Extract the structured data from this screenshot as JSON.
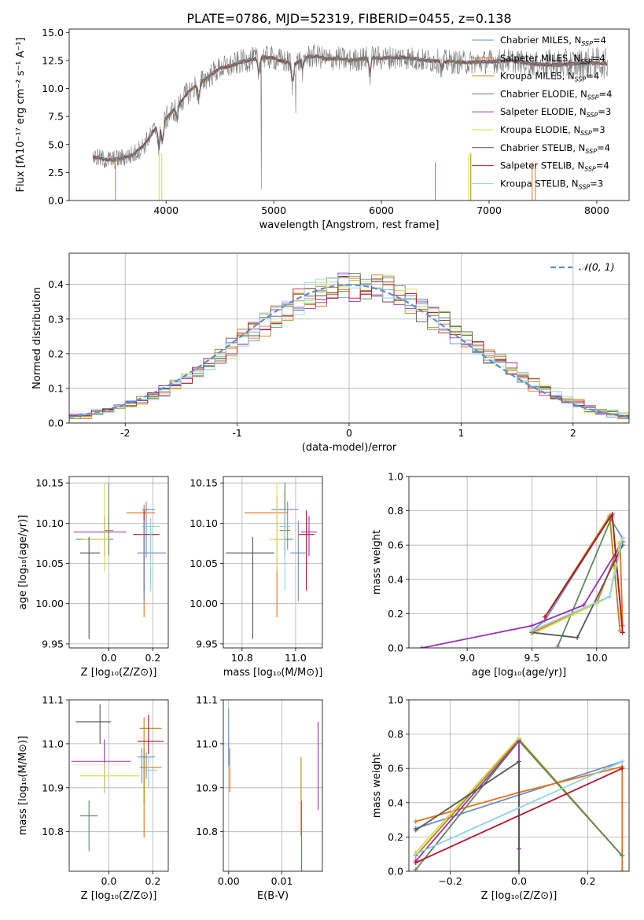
{
  "figure": {
    "title": "PLATE=0786, MJD=52319, FIBERID=0455, z=0.138"
  },
  "legend_colors": [
    "#6c8ebf",
    "#e8711a",
    "#b8860b",
    "#5b8a5e",
    "#9b30b5",
    "#d4dc50",
    "#555555",
    "#b2182b",
    "#8fd3e0"
  ],
  "chart_data": [
    {
      "id": "spectrum",
      "type": "line",
      "title": "PLATE=0786, MJD=52319, FIBERID=0455, z=0.138",
      "xlabel": "wavelength [Angstrom, rest frame]",
      "ylabel": "Flux [fλ10⁻¹⁷ erg cm⁻² s⁻¹ A⁻¹]",
      "xlim": [
        3100,
        8300
      ],
      "ylim": [
        0,
        15.3
      ],
      "xticks": [
        4000,
        5000,
        6000,
        7000,
        8000
      ],
      "yticks": [
        0.0,
        2.5,
        5.0,
        7.5,
        10.0,
        12.5,
        15.0
      ],
      "grid": false,
      "legend_position": "top-right",
      "series": [
        {
          "name": "Chabrier MILES, N_SSP=4"
        },
        {
          "name": "Salpeter MILES, N_SSP=4"
        },
        {
          "name": "Kroupa MILES, N_SSP=4"
        },
        {
          "name": "Chabrier ELODIE, N_SSP=4"
        },
        {
          "name": "Salpeter ELODIE, N_SSP=3"
        },
        {
          "name": "Kroupa ELODIE, N_SSP=3"
        },
        {
          "name": "Chabrier STELIB, N_SSP=4"
        },
        {
          "name": "Salpeter STELIB, N_SSP=4"
        },
        {
          "name": "Kroupa STELIB, N_SSP=3"
        }
      ],
      "continuum": {
        "x": [
          3320,
          3400,
          3500,
          3600,
          3700,
          3800,
          3900,
          4000,
          4100,
          4200,
          4300,
          4400,
          4500,
          4600,
          4700,
          4800,
          4900,
          5000,
          5100,
          5200,
          5300,
          5400,
          5500,
          5600,
          5700,
          5800,
          5900,
          6000,
          6200,
          6400,
          6600,
          6800,
          7000,
          7200,
          7400,
          7600,
          7800,
          8000,
          8100
        ],
        "y": [
          3.9,
          3.7,
          3.6,
          3.8,
          4.1,
          5.0,
          6.4,
          7.3,
          8.4,
          9.6,
          10.4,
          11.1,
          11.8,
          12.0,
          12.4,
          12.6,
          12.8,
          12.7,
          12.4,
          12.2,
          12.8,
          12.9,
          12.6,
          12.7,
          12.5,
          12.6,
          12.8,
          12.7,
          12.8,
          12.5,
          12.4,
          12.3,
          12.4,
          12.5,
          12.2,
          12.1,
          12.2,
          12.3,
          12.2
        ]
      }
    },
    {
      "id": "residuals",
      "type": "histogram",
      "xlabel": "(data-model)/error",
      "ylabel": "Normed distribution",
      "xlim": [
        -2.5,
        2.5
      ],
      "ylim": [
        0,
        0.49
      ],
      "xticks": [
        -2,
        -1,
        0,
        1,
        2
      ],
      "yticks": [
        0.0,
        0.1,
        0.2,
        0.3,
        0.4
      ],
      "grid": true,
      "legend_position": "top-right",
      "reference_curve": {
        "name": "𝒩(0, 1)",
        "mean": 0,
        "sigma": 1,
        "style": "dashed"
      }
    },
    {
      "id": "age-vs-Z",
      "type": "errorbar",
      "xlabel": "Z [log₁₀(Z/Z⊙)]",
      "ylabel": "age  [log₁₀(age/yr)]",
      "xlim": [
        -0.18,
        0.27
      ],
      "ylim": [
        9.945,
        10.158
      ],
      "xticks": [
        0.0,
        0.2
      ],
      "xticklabels": [
        "0.0",
        "0.2"
      ],
      "yticks": [
        9.95,
        10.0,
        10.05,
        10.1,
        10.15
      ],
      "yticklabels": [
        "9.95",
        "10.00",
        "10.05",
        "10.10",
        "10.15"
      ],
      "grid": true,
      "points": [
        {
          "x": 0.17,
          "y": 10.117,
          "xerr": [
            0.02,
            0.04
          ],
          "yerr": [
            0.06,
            0.01
          ]
        },
        {
          "x": 0.16,
          "y": 10.113,
          "xerr": [
            0.08,
            0.05
          ],
          "yerr": [
            0.13,
            0.01
          ]
        },
        {
          "x": 0.0,
          "y": 10.091,
          "xerr": [
            0.02,
            0.02
          ],
          "yerr": [
            0.03,
            0.02
          ]
        },
        {
          "x": 0.0,
          "y": 10.08,
          "xerr": [
            0.15,
            0.02
          ],
          "yerr": [
            0.02,
            0.07
          ]
        },
        {
          "x": -0.02,
          "y": 10.089,
          "xerr": [
            0.14,
            0.1
          ],
          "yerr": [
            0.03,
            0.02
          ]
        },
        {
          "x": -0.02,
          "y": 10.08,
          "xerr": [
            0.1,
            0.02
          ],
          "yerr": [
            0.04,
            0.07
          ]
        },
        {
          "x": -0.09,
          "y": 10.063,
          "xerr": [
            0.04,
            0.05
          ],
          "yerr": [
            0.107,
            0.02
          ]
        },
        {
          "x": 0.16,
          "y": 10.086,
          "xerr": [
            0.05,
            0.07
          ],
          "yerr": [
            0.07,
            0.03
          ]
        },
        {
          "x": 0.19,
          "y": 10.096,
          "xerr": [
            0.04,
            0.04
          ],
          "yerr": [
            0.08,
            0.01
          ]
        },
        {
          "x": 0.16,
          "y": 10.063,
          "xerr": [
            0.03,
            0.1
          ],
          "yerr": [
            0.06,
            0.04
          ]
        }
      ]
    },
    {
      "id": "age-vs-mass",
      "type": "errorbar",
      "xlabel": "mass [log₁₀(M/M⊙)]",
      "ylabel": "",
      "xlim": [
        10.73,
        11.1
      ],
      "ylim": [
        9.945,
        10.158
      ],
      "xticks": [
        10.8,
        11.0
      ],
      "xticklabels": [
        "10.8",
        "11.0"
      ],
      "yticks": [
        9.95,
        10.0,
        10.05,
        10.1,
        10.15
      ],
      "yticklabels": [
        "9.95",
        "10.00",
        "10.05",
        "10.10",
        "10.15"
      ],
      "grid": true,
      "points": [
        {
          "x": 10.97,
          "y": 10.117,
          "xerr": [
            0.06,
            0.04
          ],
          "yerr": [
            0.05,
            0.01
          ]
        },
        {
          "x": 10.93,
          "y": 10.113,
          "xerr": [
            0.12,
            0.04
          ],
          "yerr": [
            0.13,
            0.02
          ]
        },
        {
          "x": 10.96,
          "y": 10.091,
          "xerr": [
            0.02,
            0.02
          ],
          "yerr": [
            0.03,
            0.05
          ]
        },
        {
          "x": 10.96,
          "y": 10.08,
          "xerr": [
            0.04,
            0.03
          ],
          "yerr": [
            0.02,
            0.07
          ]
        },
        {
          "x": 11.05,
          "y": 10.089,
          "xerr": [
            0.03,
            0.03
          ],
          "yerr": [
            0.03,
            0.02
          ]
        },
        {
          "x": 10.93,
          "y": 10.08,
          "xerr": [
            0.03,
            0.03
          ],
          "yerr": [
            0.04,
            0.07
          ]
        },
        {
          "x": 10.84,
          "y": 10.063,
          "xerr": [
            0.1,
            0.08
          ],
          "yerr": [
            0.107,
            0.02
          ]
        },
        {
          "x": 11.04,
          "y": 10.086,
          "xerr": [
            0.03,
            0.03
          ],
          "yerr": [
            0.07,
            0.03
          ]
        },
        {
          "x": 10.96,
          "y": 10.096,
          "xerr": [
            0.02,
            0.02
          ],
          "yerr": [
            0.08,
            0.02
          ]
        },
        {
          "x": 11.01,
          "y": 10.063,
          "xerr": [
            0.03,
            0.03
          ],
          "yerr": [
            0.06,
            0.04
          ]
        }
      ]
    },
    {
      "id": "weight-vs-age",
      "type": "line",
      "xlabel": "age  [log₁₀(age/yr)]",
      "ylabel": "mass weight",
      "xlim": [
        8.55,
        10.25
      ],
      "ylim": [
        0,
        1.0
      ],
      "xticks": [
        9.0,
        9.5,
        10.0
      ],
      "xticklabels": [
        "9.0",
        "9.5",
        "10.0"
      ],
      "yticks": [
        0.0,
        0.2,
        0.4,
        0.6,
        0.8,
        1.0
      ],
      "grid": true,
      "lines": [
        {
          "x": [
            9.5,
            9.6,
            10.1,
            10.2
          ],
          "y": [
            0.1,
            0.16,
            0.76,
            0.64
          ]
        },
        {
          "x": [
            9.5,
            10.0,
            10.18,
            10.2
          ],
          "y": [
            0.09,
            0.26,
            0.61,
            0.13
          ]
        },
        {
          "x": [
            9.6,
            10.1,
            10.18
          ],
          "y": [
            0.18,
            0.77,
            0.1
          ]
        },
        {
          "x": [
            9.7,
            10.12,
            10.2
          ],
          "y": [
            0.01,
            0.77,
            0.09
          ]
        },
        {
          "x": [
            8.65,
            9.5,
            9.9,
            10.2
          ],
          "y": [
            0.0,
            0.13,
            0.25,
            0.62
          ]
        },
        {
          "x": [
            9.5,
            10.0,
            10.1,
            10.18
          ],
          "y": [
            0.08,
            0.26,
            0.3,
            0.62
          ]
        },
        {
          "x": [
            9.5,
            9.85,
            10.2
          ],
          "y": [
            0.09,
            0.06,
            0.6
          ]
        },
        {
          "x": [
            9.6,
            10.12,
            10.2
          ],
          "y": [
            0.18,
            0.78,
            0.09
          ]
        },
        {
          "x": [
            9.5,
            10.1,
            10.2
          ],
          "y": [
            0.1,
            0.3,
            0.64
          ]
        }
      ]
    },
    {
      "id": "mass-vs-Z",
      "type": "errorbar",
      "xlabel": "Z [log₁₀(Z/Z⊙)]",
      "ylabel": "mass [log₁₀(M/M⊙)]",
      "xlim": [
        -0.18,
        0.27
      ],
      "ylim": [
        10.71,
        11.1
      ],
      "xticks": [
        0.0,
        0.2
      ],
      "xticklabels": [
        "0.0",
        "0.2"
      ],
      "yticks": [
        10.8,
        10.9,
        11.0,
        11.1
      ],
      "yticklabels": [
        "10.8",
        "10.9",
        "11.0",
        "11.1"
      ],
      "grid": true,
      "points": [
        {
          "x": 0.17,
          "y": 10.97,
          "xerr": [
            0.02,
            0.04
          ],
          "yerr": [
            0.05,
            0.01
          ]
        },
        {
          "x": 0.16,
          "y": 10.946,
          "xerr": [
            0.02,
            0.08
          ],
          "yerr": [
            0.16,
            0.04
          ]
        },
        {
          "x": 0.16,
          "y": 11.035,
          "xerr": [
            0.02,
            0.08
          ],
          "yerr": [
            0.17,
            0.025
          ]
        },
        {
          "x": -0.09,
          "y": 10.836,
          "xerr": [
            0.04,
            0.04
          ],
          "yerr": [
            0.08,
            0.035
          ]
        },
        {
          "x": -0.02,
          "y": 10.96,
          "xerr": [
            0.15,
            0.12
          ],
          "yerr": [
            0.07,
            0.05
          ]
        },
        {
          "x": -0.02,
          "y": 10.927,
          "xerr": [
            0.11,
            0.16
          ],
          "yerr": [
            0.04,
            0.03
          ]
        },
        {
          "x": -0.04,
          "y": 11.05,
          "xerr": [
            0.11,
            0.05
          ],
          "yerr": [
            0.05,
            0.04
          ]
        },
        {
          "x": 0.18,
          "y": 11.006,
          "xerr": [
            0.05,
            0.07
          ],
          "yerr": [
            0.03,
            0.06
          ]
        },
        {
          "x": 0.18,
          "y": 10.94,
          "xerr": [
            0.02,
            0.04
          ],
          "yerr": [
            0.04,
            0.03
          ]
        },
        {
          "x": 0.15,
          "y": 10.97,
          "xerr": [
            0.02,
            0.02
          ],
          "yerr": [
            0.06,
            0.02
          ]
        }
      ]
    },
    {
      "id": "mass-vs-ebv",
      "type": "errorbar",
      "xlabel": "E(B-V)",
      "ylabel": "",
      "xlim": [
        -0.001,
        0.0176
      ],
      "ylim": [
        10.71,
        11.1
      ],
      "xticks": [
        0.0,
        0.01
      ],
      "xticklabels": [
        "0.00",
        "0.01"
      ],
      "yticks": [
        10.8,
        10.9,
        11.0,
        11.1
      ],
      "yticklabels": [
        "10.8",
        "10.9",
        "11.0",
        "11.1"
      ],
      "grid": true,
      "points": [
        {
          "x": 0.0,
          "y": 11.0,
          "xerr": [
            0.0,
            0.0
          ],
          "yerr": [
            0.05,
            0.08
          ]
        },
        {
          "x": 0.0002,
          "y": 10.94,
          "xerr": [
            0.0,
            0.0
          ],
          "yerr": [
            0.05,
            0.05
          ]
        },
        {
          "x": 0.0136,
          "y": 10.9,
          "xerr": [
            0.0,
            0.0
          ],
          "yerr": [
            0.11,
            0.07
          ]
        },
        {
          "x": 0.0137,
          "y": 10.78,
          "xerr": [
            0.0,
            0.0
          ],
          "yerr": [
            0.1,
            0.09
          ]
        },
        {
          "x": 0.0168,
          "y": 10.95,
          "xerr": [
            0.0,
            0.0
          ],
          "yerr": [
            0.1,
            0.1
          ]
        }
      ]
    },
    {
      "id": "weight-vs-Z",
      "type": "line",
      "xlabel": "Z [log₁₀(Z/Z⊙)]",
      "ylabel": "mass weight",
      "xlim": [
        -0.32,
        0.32
      ],
      "ylim": [
        0,
        1.0
      ],
      "xticks": [
        -0.2,
        0.0,
        0.2
      ],
      "xticklabels": [
        "−0.2",
        "0.0",
        "0.2"
      ],
      "yticks": [
        0.0,
        0.2,
        0.4,
        0.6,
        0.8,
        1.0
      ],
      "grid": true,
      "lines": [
        {
          "x": [
            -0.3,
            0.3
          ],
          "y": [
            0.25,
            0.64
          ]
        },
        {
          "x": [
            -0.3,
            0.0,
            0.3,
            0.3
          ],
          "y": [
            0.29,
            0.46,
            0.61,
            0.0
          ]
        },
        {
          "x": [
            -0.3,
            0.0,
            0.3
          ],
          "y": [
            0.09,
            0.77,
            0.09
          ]
        },
        {
          "x": [
            -0.3,
            0.0,
            0.3
          ],
          "y": [
            0.01,
            0.76,
            0.09
          ]
        },
        {
          "x": [
            -0.3,
            0.0,
            0.0
          ],
          "y": [
            0.06,
            0.76,
            0.13
          ]
        },
        {
          "x": [
            -0.3,
            0.0
          ],
          "y": [
            0.11,
            0.78
          ]
        },
        {
          "x": [
            -0.3,
            0.0,
            0.0
          ],
          "y": [
            0.24,
            0.64,
            0.0
          ]
        },
        {
          "x": [
            -0.3,
            0.3
          ],
          "y": [
            0.05,
            0.6
          ]
        },
        {
          "x": [
            -0.3,
            0.3
          ],
          "y": [
            0.1,
            0.64
          ]
        }
      ]
    }
  ]
}
